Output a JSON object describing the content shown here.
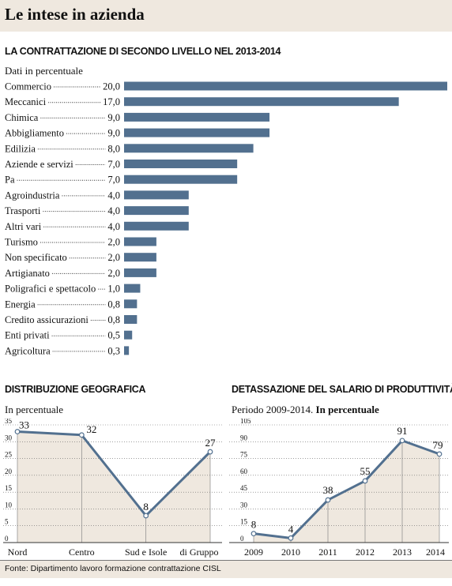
{
  "header": {
    "title": "Le intese in azienda"
  },
  "footer": {
    "source": "Fonte: Dipartimento lavoro formazione contrattazione CISL"
  },
  "chart_data": [
    {
      "type": "bar",
      "orientation": "horizontal",
      "title": "LA CONTRATTAZIONE DI SECONDO LIVELLO NEL 2013-2014",
      "subtitle": "Dati in percentuale",
      "categories": [
        "Commercio",
        "Meccanici",
        "Chimica",
        "Abbigliamento",
        "Edilizia",
        "Aziende e servizi",
        "Pa",
        "Agroindustria",
        "Trasporti",
        "Altri vari",
        "Turismo",
        "Non specificato",
        "Artigianato",
        "Poligrafici e spettacolo",
        "Energia",
        "Credito assicurazioni",
        "Enti privati",
        "Agricoltura"
      ],
      "values": [
        20.0,
        17.0,
        9.0,
        9.0,
        8.0,
        7.0,
        7.0,
        4.0,
        4.0,
        4.0,
        2.0,
        2.0,
        2.0,
        1.0,
        0.8,
        0.8,
        0.5,
        0.3
      ],
      "value_labels": [
        "20,0",
        "17,0",
        "9,0",
        "9,0",
        "8,0",
        "7,0",
        "7,0",
        "4,0",
        "4,0",
        "4,0",
        "2,0",
        "2,0",
        "2,0",
        "1,0",
        "0,8",
        "0,8",
        "0,5",
        "0,3"
      ],
      "color": "#52708f"
    },
    {
      "type": "area",
      "title": "DISTRIBUZIONE GEOGRAFICA",
      "subtitle": "In percentuale",
      "categories": [
        "Nord",
        "Centro",
        "Sud e Isole",
        "di Gruppo"
      ],
      "values": [
        33,
        32,
        8,
        27
      ],
      "ylim": [
        0,
        35
      ],
      "yticks": [
        0,
        5,
        10,
        15,
        20,
        25,
        30,
        35
      ],
      "grid": true,
      "line_color": "#52708f",
      "fill_color": "#efe8df"
    },
    {
      "type": "area",
      "title": "DETASSAZIONE DEL SALARIO DI PRODUTTIVITÀ",
      "subtitle_prefix": "Periodo 2009-2014.",
      "subtitle_bold": "In percentuale",
      "categories": [
        "2009",
        "2010",
        "2011",
        "2012",
        "2013",
        "2014"
      ],
      "values": [
        8,
        4,
        38,
        55,
        91,
        79
      ],
      "ylim": [
        0,
        105
      ],
      "yticks": [
        0,
        15,
        30,
        45,
        60,
        75,
        90,
        105
      ],
      "grid": true,
      "line_color": "#52708f",
      "fill_color": "#efe8df"
    }
  ]
}
